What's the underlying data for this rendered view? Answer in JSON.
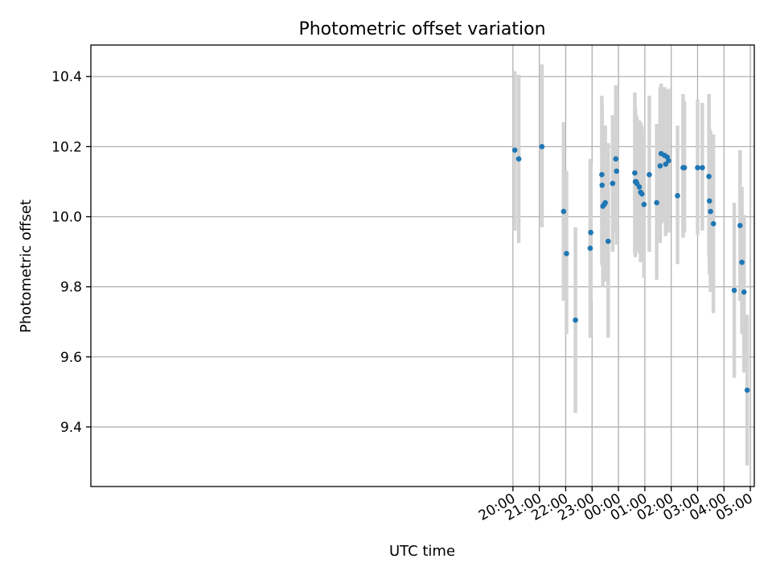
{
  "chart_data": {
    "type": "scatter",
    "title": "Photometric offset variation",
    "xlabel": "UTC time",
    "ylabel": "Photometric offset",
    "x_unit": "hours after 00:00 UTC",
    "xlim": [
      -20.0,
      5.15
    ],
    "ylim": [
      9.23,
      10.49
    ],
    "grid": true,
    "colors": {
      "points": "#1f77b4",
      "errorbars": "#d3d3d3",
      "grid": "#b0b0b0"
    },
    "xticks": [
      {
        "value": -4,
        "label": "20:00"
      },
      {
        "value": -3,
        "label": "21:00"
      },
      {
        "value": -2,
        "label": "22:00"
      },
      {
        "value": -1,
        "label": "23:00"
      },
      {
        "value": 0,
        "label": "00:00"
      },
      {
        "value": 1,
        "label": "01:00"
      },
      {
        "value": 2,
        "label": "02:00"
      },
      {
        "value": 3,
        "label": "03:00"
      },
      {
        "value": 4,
        "label": "04:00"
      },
      {
        "value": 5,
        "label": "05:00"
      }
    ],
    "yticks": [
      {
        "value": 9.4,
        "label": "9.4"
      },
      {
        "value": 9.6,
        "label": "9.6"
      },
      {
        "value": 9.8,
        "label": "9.8"
      },
      {
        "value": 10.0,
        "label": "10.0"
      },
      {
        "value": 10.2,
        "label": "10.2"
      },
      {
        "value": 10.4,
        "label": "10.4"
      }
    ],
    "points": [
      {
        "x": -3.93,
        "y": 10.19,
        "low": 9.96,
        "high": 10.415
      },
      {
        "x": -3.78,
        "y": 10.165,
        "low": 9.925,
        "high": 10.405
      },
      {
        "x": -2.9,
        "y": 10.2,
        "low": 9.97,
        "high": 10.435
      },
      {
        "x": -2.08,
        "y": 10.015,
        "low": 9.76,
        "high": 10.27
      },
      {
        "x": -1.97,
        "y": 9.895,
        "low": 9.665,
        "high": 10.13
      },
      {
        "x": -1.63,
        "y": 9.705,
        "low": 9.44,
        "high": 9.97
      },
      {
        "x": -1.07,
        "y": 9.91,
        "low": 9.655,
        "high": 10.165
      },
      {
        "x": -1.05,
        "y": 9.955,
        "low": 9.76,
        "high": 10.15
      },
      {
        "x": -0.63,
        "y": 10.12,
        "low": 9.87,
        "high": 10.345
      },
      {
        "x": -0.62,
        "y": 10.09,
        "low": 9.86,
        "high": 10.315
      },
      {
        "x": -0.59,
        "y": 10.03,
        "low": 9.8,
        "high": 10.26
      },
      {
        "x": -0.54,
        "y": 10.035,
        "low": 9.82,
        "high": 10.25
      },
      {
        "x": -0.5,
        "y": 10.04,
        "low": 9.815,
        "high": 10.26
      },
      {
        "x": -0.39,
        "y": 9.93,
        "low": 9.655,
        "high": 10.21
      },
      {
        "x": -0.22,
        "y": 10.095,
        "low": 9.9,
        "high": 10.29
      },
      {
        "x": -0.1,
        "y": 10.165,
        "low": 9.955,
        "high": 10.375
      },
      {
        "x": -0.07,
        "y": 10.13,
        "low": 9.92,
        "high": 10.34
      },
      {
        "x": 0.62,
        "y": 10.125,
        "low": 9.895,
        "high": 10.355
      },
      {
        "x": 0.64,
        "y": 10.1,
        "low": 9.885,
        "high": 10.315
      },
      {
        "x": 0.67,
        "y": 10.1,
        "low": 9.91,
        "high": 10.29
      },
      {
        "x": 0.7,
        "y": 10.095,
        "low": 9.905,
        "high": 10.285
      },
      {
        "x": 0.79,
        "y": 10.085,
        "low": 9.895,
        "high": 10.275
      },
      {
        "x": 0.84,
        "y": 10.07,
        "low": 9.87,
        "high": 10.27
      },
      {
        "x": 0.89,
        "y": 10.065,
        "low": 9.87,
        "high": 10.26
      },
      {
        "x": 0.97,
        "y": 10.035,
        "low": 9.825,
        "high": 10.245
      },
      {
        "x": 1.17,
        "y": 10.12,
        "low": 9.9,
        "high": 10.345
      },
      {
        "x": 1.45,
        "y": 10.04,
        "low": 9.82,
        "high": 10.265
      },
      {
        "x": 1.58,
        "y": 10.145,
        "low": 9.925,
        "high": 10.37
      },
      {
        "x": 1.62,
        "y": 10.18,
        "low": 9.98,
        "high": 10.38
      },
      {
        "x": 1.75,
        "y": 10.175,
        "low": 9.985,
        "high": 10.37
      },
      {
        "x": 1.79,
        "y": 10.15,
        "low": 9.945,
        "high": 10.36
      },
      {
        "x": 1.85,
        "y": 10.17,
        "low": 9.975,
        "high": 10.36
      },
      {
        "x": 1.9,
        "y": 10.16,
        "low": 9.955,
        "high": 10.365
      },
      {
        "x": 2.24,
        "y": 10.06,
        "low": 9.865,
        "high": 10.26
      },
      {
        "x": 2.45,
        "y": 10.14,
        "low": 9.94,
        "high": 10.35
      },
      {
        "x": 2.5,
        "y": 10.14,
        "low": 9.955,
        "high": 10.33
      },
      {
        "x": 3.0,
        "y": 10.14,
        "low": 9.95,
        "high": 10.335
      },
      {
        "x": 3.18,
        "y": 10.14,
        "low": 9.96,
        "high": 10.325
      },
      {
        "x": 3.43,
        "y": 10.115,
        "low": 9.885,
        "high": 10.35
      },
      {
        "x": 3.45,
        "y": 10.045,
        "low": 9.835,
        "high": 10.255
      },
      {
        "x": 3.49,
        "y": 10.015,
        "low": 9.785,
        "high": 10.245
      },
      {
        "x": 3.6,
        "y": 9.98,
        "low": 9.725,
        "high": 10.235
      },
      {
        "x": 4.39,
        "y": 9.79,
        "low": 9.54,
        "high": 10.04
      },
      {
        "x": 4.61,
        "y": 9.975,
        "low": 9.76,
        "high": 10.19
      },
      {
        "x": 4.68,
        "y": 9.87,
        "low": 9.665,
        "high": 10.085
      },
      {
        "x": 4.76,
        "y": 9.785,
        "low": 9.555,
        "high": 10.005
      },
      {
        "x": 4.88,
        "y": 9.505,
        "low": 9.29,
        "high": 9.72
      }
    ]
  }
}
